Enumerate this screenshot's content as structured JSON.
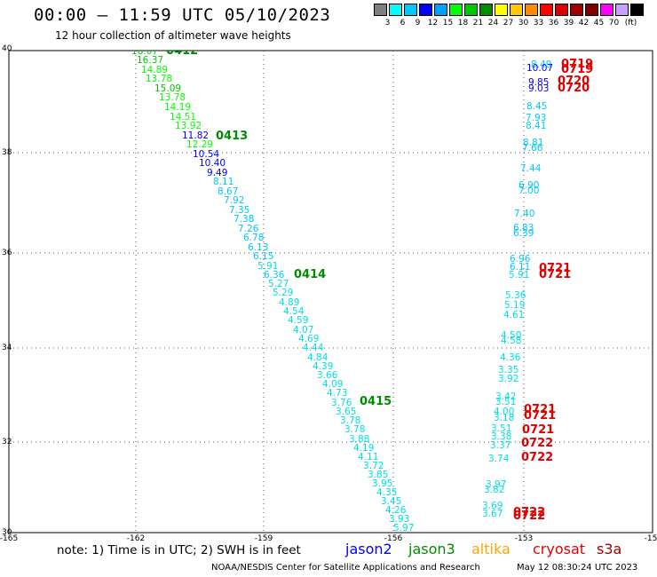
{
  "title": "00:00 – 11:59 UTC 05/10/2023",
  "subtitle": "12 hour collection of altimeter wave heights",
  "scale": {
    "colors": [
      "#7f7f7f",
      "#00ffff",
      "#00c8ff",
      "#0000ff",
      "#00a0ff",
      "#00ff00",
      "#00c800",
      "#008c00",
      "#ffff00",
      "#ffc800",
      "#ff8c00",
      "#ff0000",
      "#dc0000",
      "#a00000",
      "#800000",
      "#ff00ff",
      "#c8a0ff",
      "#000000"
    ],
    "ticks": [
      "3",
      "6",
      "9",
      "12",
      "15",
      "18",
      "21",
      "24",
      "27",
      "30",
      "33",
      "36",
      "39",
      "42",
      "45",
      "70"
    ],
    "unit": "(ft)"
  },
  "lat_labels": [
    "40",
    "38",
    "36",
    "34",
    "32",
    "30"
  ],
  "lon_labels": [
    "-165",
    "-162",
    "-159",
    "-156",
    "-153",
    "-15"
  ],
  "measurements": [
    {
      "v": "16.07",
      "c": "#00c800"
    },
    {
      "v": "16.37",
      "c": "#00c800"
    },
    {
      "v": "14.89",
      "c": "#00ff00"
    },
    {
      "v": "13.78",
      "c": "#00ff00"
    },
    {
      "v": "15.09",
      "c": "#00c800"
    },
    {
      "v": "13.78",
      "c": "#00ff00"
    },
    {
      "v": "14.19",
      "c": "#00ff00"
    },
    {
      "v": "14.51",
      "c": "#00ff00"
    },
    {
      "v": "13.92",
      "c": "#00ff00"
    },
    {
      "v": "11.82",
      "c": "#0000ff"
    },
    {
      "v": "12.29",
      "c": "#00ff00"
    },
    {
      "v": "10.54",
      "c": "#0000ff"
    },
    {
      "v": "10.40",
      "c": "#0000ff"
    },
    {
      "v": "9.49",
      "c": "#0000ff"
    },
    {
      "v": "8.11",
      "c": "#00c8ff"
    },
    {
      "v": "8.67",
      "c": "#00c8ff"
    },
    {
      "v": "7.92",
      "c": "#00c8ff"
    },
    {
      "v": "7.35",
      "c": "#00c8ff"
    },
    {
      "v": "7.38",
      "c": "#00c8ff"
    },
    {
      "v": "7.26",
      "c": "#00c8ff"
    },
    {
      "v": "6.78",
      "c": "#00c8ff"
    },
    {
      "v": "6.13",
      "c": "#00c8ff"
    },
    {
      "v": "6.15",
      "c": "#00c8ff"
    },
    {
      "v": "5.91",
      "c": "#00e0e0"
    },
    {
      "v": "6.36",
      "c": "#00c8ff"
    },
    {
      "v": "5.27",
      "c": "#00e0e0"
    },
    {
      "v": "5.29",
      "c": "#00e0e0"
    },
    {
      "v": "4.89",
      "c": "#00e0e0"
    },
    {
      "v": "4.54",
      "c": "#00e0e0"
    },
    {
      "v": "4.59",
      "c": "#00e0e0"
    },
    {
      "v": "4.07",
      "c": "#00e0e0"
    },
    {
      "v": "4.69",
      "c": "#00e0e0"
    },
    {
      "v": "4.44",
      "c": "#00e0e0"
    },
    {
      "v": "4.84",
      "c": "#00e0e0"
    },
    {
      "v": "4.39",
      "c": "#00e0e0"
    },
    {
      "v": "3.66",
      "c": "#00e0e0"
    },
    {
      "v": "4.09",
      "c": "#00e0e0"
    },
    {
      "v": "4.73",
      "c": "#00e0e0"
    },
    {
      "v": "3.76",
      "c": "#00e0e0"
    },
    {
      "v": "3.65",
      "c": "#00e0e0"
    },
    {
      "v": "3.78",
      "c": "#00e0e0"
    },
    {
      "v": "3.78",
      "c": "#00e0e0"
    },
    {
      "v": "3.88",
      "c": "#00e0e0"
    },
    {
      "v": "4.19",
      "c": "#00e0e0"
    },
    {
      "v": "4.11",
      "c": "#00e0e0"
    },
    {
      "v": "3.72",
      "c": "#00e0e0"
    },
    {
      "v": "3.85",
      "c": "#00e0e0"
    },
    {
      "v": "3.95",
      "c": "#00e0e0"
    },
    {
      "v": "4.35",
      "c": "#00e0e0"
    },
    {
      "v": "3.45",
      "c": "#00e0e0"
    },
    {
      "v": "4.26",
      "c": "#00e0e0"
    },
    {
      "v": "3.93",
      "c": "#00e0e0"
    },
    {
      "v": "5.97",
      "c": "#00e0e0"
    },
    {
      "v": "8.49",
      "c": "#00c8ff"
    },
    {
      "v": "10.07",
      "c": "#0000ff"
    },
    {
      "v": "9.85",
      "c": "#0000ff"
    },
    {
      "v": "9.03",
      "c": "#0000ff"
    },
    {
      "v": "8.45",
      "c": "#00c8ff"
    },
    {
      "v": "7.93",
      "c": "#00c8ff"
    },
    {
      "v": "8.41",
      "c": "#00c8ff"
    },
    {
      "v": "8.81",
      "c": "#00c8ff"
    },
    {
      "v": "7.66",
      "c": "#00c8ff"
    },
    {
      "v": "7.44",
      "c": "#00c8ff"
    },
    {
      "v": "6.90",
      "c": "#00c8ff"
    },
    {
      "v": "7.00",
      "c": "#00c8ff"
    },
    {
      "v": "7.40",
      "c": "#00c8ff"
    },
    {
      "v": "6.83",
      "c": "#00c8ff"
    },
    {
      "v": "6.39",
      "c": "#00c8ff"
    },
    {
      "v": "6.96",
      "c": "#00c8ff"
    },
    {
      "v": "6.11",
      "c": "#00c8ff"
    },
    {
      "v": "5.91",
      "c": "#00e0e0"
    },
    {
      "v": "5.36",
      "c": "#00e0e0"
    },
    {
      "v": "5.19",
      "c": "#00e0e0"
    },
    {
      "v": "4.61",
      "c": "#00e0e0"
    },
    {
      "v": "4.50",
      "c": "#00e0e0"
    },
    {
      "v": "4.58",
      "c": "#00e0e0"
    },
    {
      "v": "4.36",
      "c": "#00e0e0"
    },
    {
      "v": "3.35",
      "c": "#00e0e0"
    },
    {
      "v": "3.92",
      "c": "#00e0e0"
    },
    {
      "v": "3.42",
      "c": "#00e0e0"
    },
    {
      "v": "3.51",
      "c": "#00e0e0"
    },
    {
      "v": "4.00",
      "c": "#00e0e0"
    },
    {
      "v": "3.18",
      "c": "#00e0e0"
    },
    {
      "v": "3.51",
      "c": "#00e0e0"
    },
    {
      "v": "3.38",
      "c": "#00e0e0"
    },
    {
      "v": "3.37",
      "c": "#00e0e0"
    },
    {
      "v": "3.74",
      "c": "#00e0e0"
    },
    {
      "v": "3.97",
      "c": "#00e0e0"
    },
    {
      "v": "3.82",
      "c": "#00e0e0"
    },
    {
      "v": "3.69",
      "c": "#00e0e0"
    },
    {
      "v": "3.67",
      "c": "#00e0e0"
    }
  ],
  "passes": [
    {
      "t": "0412",
      "c": "#008c00"
    },
    {
      "t": "0413",
      "c": "#008c00"
    },
    {
      "t": "0414",
      "c": "#008c00"
    },
    {
      "t": "0415",
      "c": "#008c00"
    },
    {
      "t": "0719",
      "c": "#e00000"
    },
    {
      "t": "0719",
      "c": "#e00000"
    },
    {
      "t": "0720",
      "c": "#e00000"
    },
    {
      "t": "0720",
      "c": "#e00000"
    },
    {
      "t": "0721",
      "c": "#e00000"
    },
    {
      "t": "0721",
      "c": "#e00000"
    },
    {
      "t": "0721",
      "c": "#e00000"
    },
    {
      "t": "0721",
      "c": "#e00000"
    },
    {
      "t": "0721",
      "c": "#e00000"
    },
    {
      "t": "0722",
      "c": "#e00000"
    },
    {
      "t": "0722",
      "c": "#e00000"
    },
    {
      "t": "0722",
      "c": "#e00000"
    },
    {
      "t": "0722",
      "c": "#e00000"
    }
  ],
  "note": "note: 1) Time is in UTC; 2) SWH is in feet",
  "satellites": [
    {
      "name": "jason2",
      "color": "#0000ff"
    },
    {
      "name": "jason3",
      "color": "#008c00"
    },
    {
      "name": "altika",
      "color": "#ffa500"
    },
    {
      "name": "cryosat",
      "color": "#e00000"
    },
    {
      "name": "s3a",
      "color": "#a00000"
    }
  ],
  "credit": "NOAA/NESDIS Center for Satellite Applications and Research",
  "timestamp": "May 12 08:30:24 UTC 2023"
}
